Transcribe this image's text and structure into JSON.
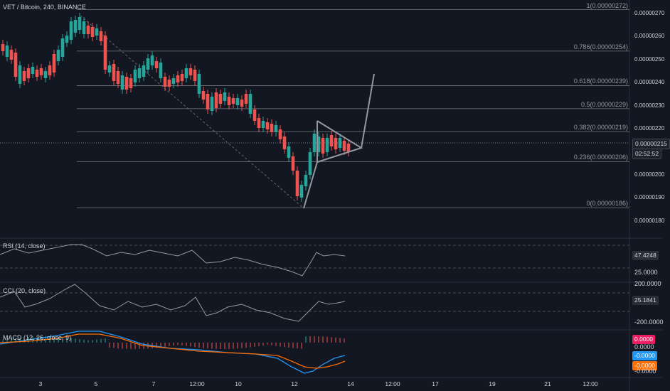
{
  "symbol_title": "VET / Bitcoin, 240, BINANCE",
  "price_axis": [
    "0.00000270",
    "0.00000260",
    "0.00000250",
    "0.00000240",
    "0.00000230",
    "0.00000220",
    "0.00000200",
    "0.00000190",
    "0.00000180"
  ],
  "current_price": "0.00000215",
  "countdown": "02:52:52",
  "fib_levels": [
    {
      "label": "1(0.00000272)",
      "value": 2.72e-06
    },
    {
      "label": "0.786(0.00000254)",
      "value": 2.54e-06
    },
    {
      "label": "0.618(0.00000239)",
      "value": 2.39e-06
    },
    {
      "label": "0.5(0.00000229)",
      "value": 2.29e-06
    },
    {
      "label": "0.382(0.00000219)",
      "value": 2.19e-06
    },
    {
      "label": "0.236(0.00000206)",
      "value": 2.06e-06
    },
    {
      "label": "0(0.00000186)",
      "value": 1.86e-06
    }
  ],
  "rsi": {
    "title": "RSI (14, close)",
    "value_tag": "47.4248",
    "level_label": "25.0000"
  },
  "cci": {
    "title": "CCI (20, close)",
    "upper_label": "200.0000",
    "value_tag": "25.1841",
    "lower_label": "-200.0000"
  },
  "macd": {
    "title": "MACD (12, 26, close, 9)",
    "hist_tag": "0.0000",
    "upper_label": "0.0000",
    "macd_tag": "-0.0000",
    "signal_tag": "-0.0000",
    "lower_label": "-0.0000"
  },
  "time_axis": [
    "3",
    "5",
    "7",
    "12:00",
    "10",
    "12",
    "14",
    "12:00",
    "17",
    "19",
    "21",
    "12:00"
  ],
  "colors": {
    "up": "#26a69a",
    "down": "#ef5350",
    "bg": "#131722",
    "grid": "#2a2e39",
    "fib": "#787b86",
    "macd": "#2196f3",
    "signal": "#ff6d00",
    "hist_pos": "#26a69a",
    "hist_neg": "#ef5350"
  }
}
